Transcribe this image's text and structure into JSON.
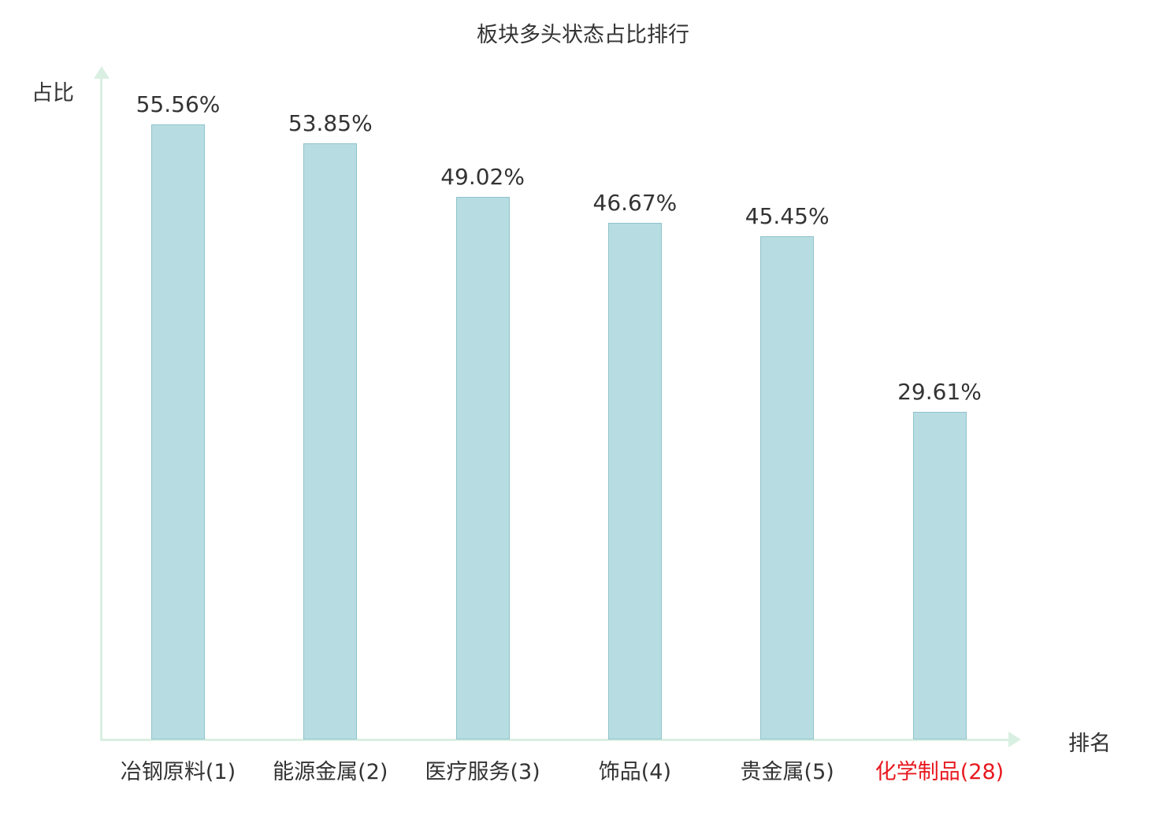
{
  "chart_data": {
    "type": "bar",
    "title": "板块多头状态占比排行",
    "xlabel": "排名",
    "ylabel": "占比",
    "ylim": [
      0,
      60
    ],
    "grid": false,
    "legend": "none",
    "categories": [
      "冶钢原料(1)",
      "能源金属(2)",
      "医疗服务(3)",
      "饰品(4)",
      "贵金属(5)",
      "化学制品(28)"
    ],
    "values": [
      55.56,
      53.85,
      49.02,
      46.67,
      45.45,
      29.61
    ],
    "value_labels": [
      "55.56%",
      "53.85%",
      "49.02%",
      "46.67%",
      "45.45%",
      "29.61%"
    ],
    "category_colors": [
      "#333333",
      "#333333",
      "#333333",
      "#333333",
      "#333333",
      "#e8191f"
    ],
    "bar_fill": "#b7dde2",
    "bar_border": "#8fc3ca",
    "axis_color": "#d9efe2",
    "text_color": "#333333"
  }
}
